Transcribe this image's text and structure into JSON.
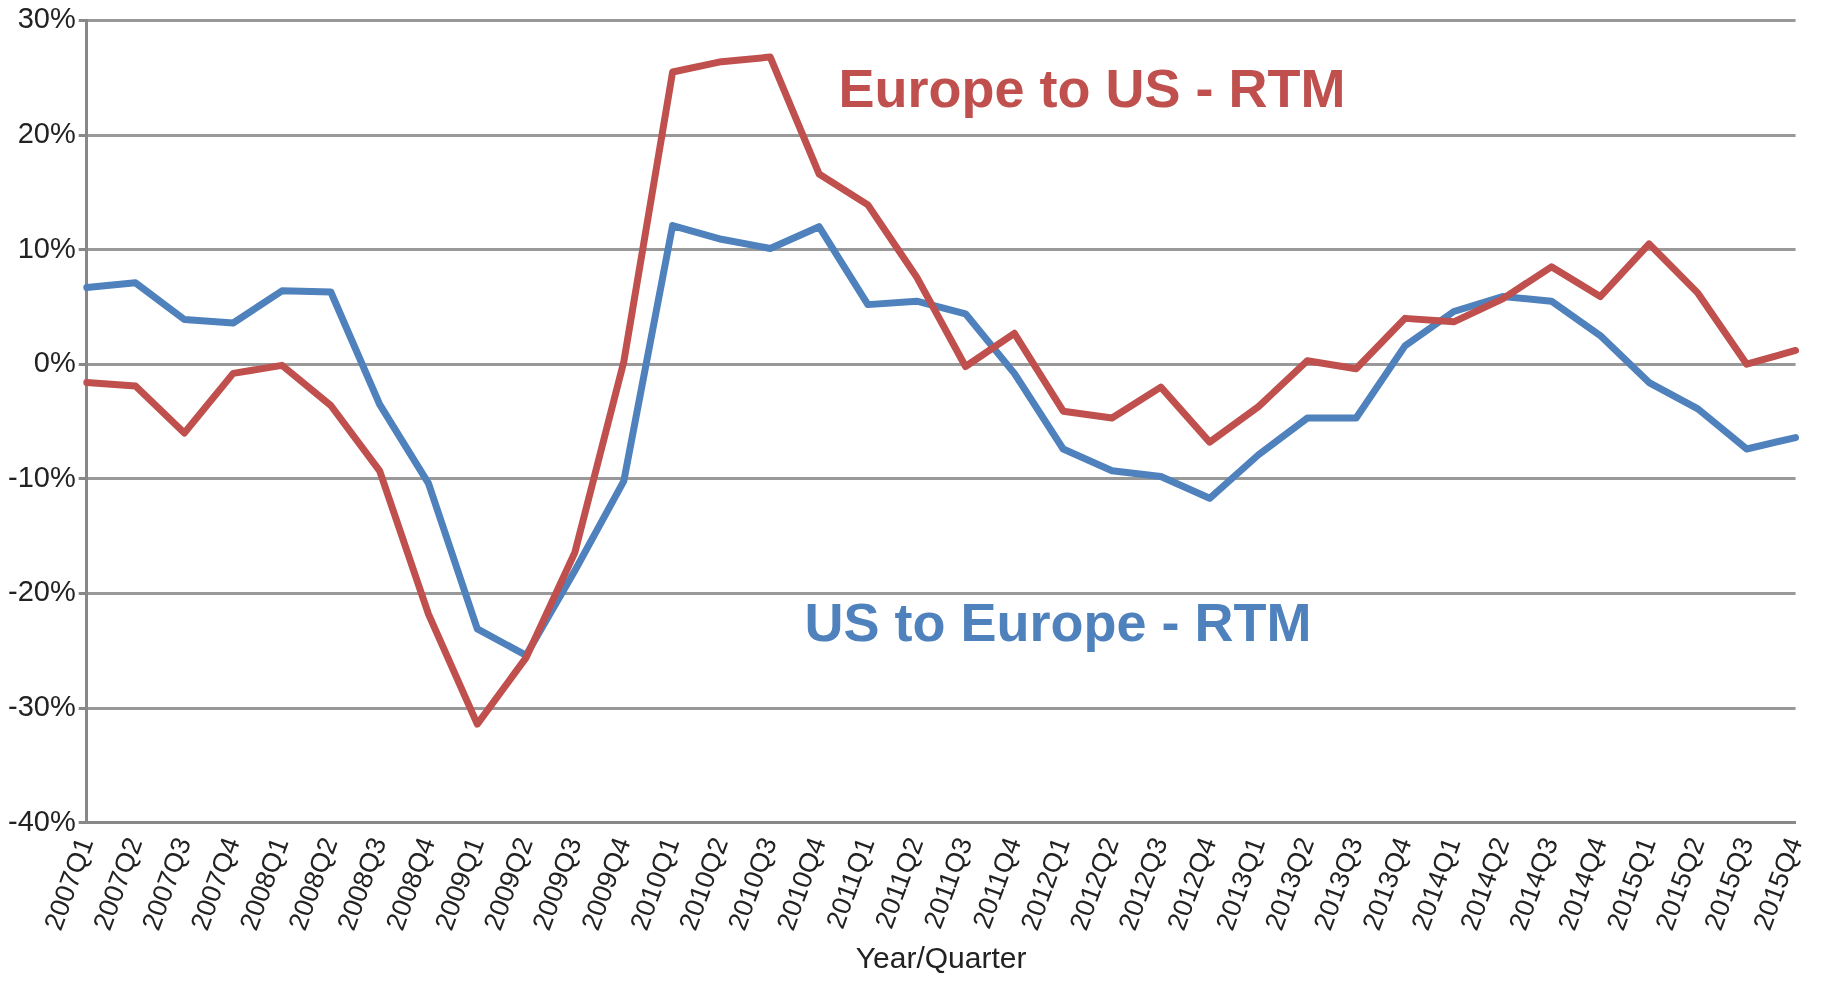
{
  "chart_data": {
    "type": "line",
    "xlabel": "Year/Quarter",
    "categories": [
      "2007Q1",
      "2007Q2",
      "2007Q3",
      "2007Q4",
      "2008Q1",
      "2008Q2",
      "2008Q3",
      "2008Q4",
      "2009Q1",
      "2009Q2",
      "2009Q3",
      "2009Q4",
      "2010Q1",
      "2010Q2",
      "2010Q3",
      "2010Q4",
      "2011Q1",
      "2011Q2",
      "2011Q3",
      "2011Q4",
      "2012Q1",
      "2012Q2",
      "2012Q3",
      "2012Q4",
      "2013Q1",
      "2013Q2",
      "2013Q3",
      "2013Q4",
      "2014Q1",
      "2014Q2",
      "2014Q3",
      "2014Q4",
      "2015Q1",
      "2015Q2",
      "2015Q3",
      "2015Q4"
    ],
    "series": [
      {
        "name": "Europe to US - RTM",
        "color": "#c0504d",
        "values": [
          -1.6,
          -1.9,
          -6.0,
          -0.8,
          -0.1,
          -3.6,
          -9.3,
          -21.8,
          -31.4,
          -25.6,
          -16.4,
          0.2,
          25.5,
          26.4,
          26.8,
          16.6,
          13.9,
          7.6,
          -0.2,
          2.7,
          -4.1,
          -4.7,
          -2.0,
          -6.8,
          -3.7,
          0.3,
          -0.4,
          4.0,
          3.7,
          5.7,
          8.5,
          5.9,
          10.5,
          6.2,
          0.0,
          1.2
        ]
      },
      {
        "name": "US to Europe - RTM",
        "color": "#4f81bd",
        "values": [
          6.7,
          7.1,
          3.9,
          3.6,
          6.4,
          6.3,
          -3.5,
          -10.4,
          -23.1,
          -25.4,
          -18.0,
          -10.2,
          12.1,
          10.9,
          10.1,
          12.0,
          5.2,
          5.5,
          4.4,
          -0.8,
          -7.4,
          -9.3,
          -9.8,
          -11.7,
          -7.9,
          -4.7,
          -4.7,
          1.6,
          4.6,
          5.9,
          5.5,
          2.5,
          -1.6,
          -3.9,
          -7.4,
          -6.4
        ]
      }
    ],
    "ylim": [
      -40,
      30
    ],
    "yticks": [
      {
        "value": -40,
        "label": "-40%"
      },
      {
        "value": -30,
        "label": "-30%"
      },
      {
        "value": -20,
        "label": "-20%"
      },
      {
        "value": -10,
        "label": "-10%"
      },
      {
        "value": 0,
        "label": "0%"
      },
      {
        "value": 10,
        "label": "10%"
      },
      {
        "value": 20,
        "label": "20%"
      },
      {
        "value": 30,
        "label": "30%"
      }
    ],
    "grid": "y",
    "line_style": "solid",
    "marker": "none",
    "legend": false
  }
}
